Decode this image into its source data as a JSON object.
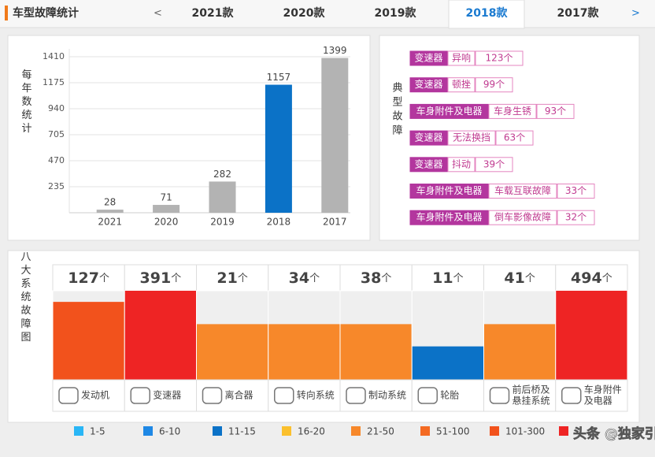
{
  "header": {
    "title": "车型故障统计",
    "prev": "<",
    "next": ">",
    "tabs": [
      "2021款",
      "2020款",
      "2019款",
      "2018款",
      "2017款"
    ],
    "active_tab": 3
  },
  "chart_data": {
    "type": "bar",
    "y_label": "每年数统计",
    "categories": [
      "2021",
      "2020",
      "2019",
      "2018",
      "2017"
    ],
    "values": [
      28,
      71,
      282,
      1157,
      1399
    ],
    "colors": [
      "#b3b3b3",
      "#b3b3b3",
      "#b3b3b3",
      "#0b72c7",
      "#b3b3b3"
    ],
    "ylim": [
      0,
      1410
    ],
    "yticks": [
      235,
      470,
      705,
      940,
      1175,
      1410
    ],
    "grid": true
  },
  "typical_faults": {
    "label": "典型故障",
    "items": [
      {
        "system": "变速器",
        "fault": "异响",
        "count": "123个"
      },
      {
        "system": "变速器",
        "fault": "顿挫",
        "count": "99个"
      },
      {
        "system": "车身附件及电器",
        "fault": "车身生锈",
        "count": "93个"
      },
      {
        "system": "变速器",
        "fault": "无法换挡",
        "count": "63个"
      },
      {
        "system": "变速器",
        "fault": "抖动",
        "count": "39个"
      },
      {
        "system": "车身附件及电器",
        "fault": "车载互联故障",
        "count": "33个"
      },
      {
        "system": "车身附件及电器",
        "fault": "倒车影像故障",
        "count": "32个"
      }
    ]
  },
  "systems": {
    "label": "八大系统故障图",
    "unit": "个",
    "items": [
      {
        "count": 127,
        "name": [
          "发动机"
        ],
        "color": "#f2521c"
      },
      {
        "count": 391,
        "name": [
          "变速器"
        ],
        "color": "#ee2424"
      },
      {
        "count": 21,
        "name": [
          "离合器"
        ],
        "color": "#f7882a"
      },
      {
        "count": 34,
        "name": [
          "转向系统"
        ],
        "color": "#f7882a"
      },
      {
        "count": 38,
        "name": [
          "制动系统"
        ],
        "color": "#f7882a"
      },
      {
        "count": 11,
        "name": [
          "轮胎"
        ],
        "color": "#0b72c7"
      },
      {
        "count": 41,
        "name": [
          "前后桥及",
          "悬挂系统"
        ],
        "color": "#f7882a"
      },
      {
        "count": 494,
        "name": [
          "车身附件",
          "及电器"
        ],
        "color": "#ee2424"
      }
    ]
  },
  "legend": [
    {
      "label": "1-5",
      "color": "#29b6f6"
    },
    {
      "label": "6-10",
      "color": "#1e88e5"
    },
    {
      "label": "11-15",
      "color": "#0b72c7"
    },
    {
      "label": "16-20",
      "color": "#fbc02d"
    },
    {
      "label": "21-50",
      "color": "#f7882a"
    },
    {
      "label": "51-100",
      "color": "#f46a22"
    },
    {
      "label": "101-300",
      "color": "#f2521c"
    },
    {
      "label": null,
      "color": "#ee2424"
    }
  ],
  "watermark": "头条 @独家引擎"
}
